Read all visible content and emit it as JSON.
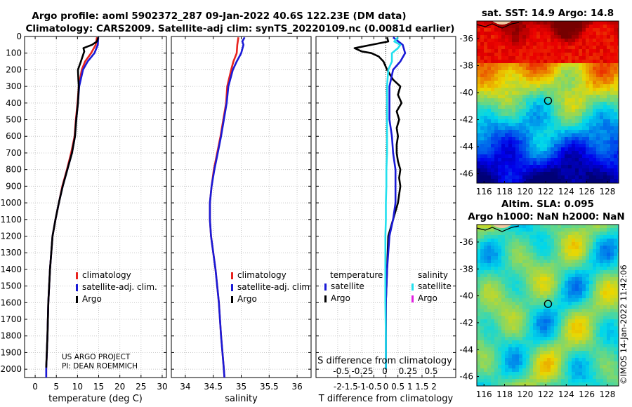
{
  "header": {
    "line1": "Argo profile: aoml 5902372_287 09-Jan-2022 40.6S 122.23E (DM data)",
    "line2": "Climatology: CARS2009. Satellite-adj clim: synTS_20220109.nc (0.0081d earlier)"
  },
  "credit": {
    "project": "US ARGO PROJECT",
    "pi": "PI: DEAN ROEMMICH",
    "side_text": "©IMOS 14-Jan-2022 11:42:06"
  },
  "colors": {
    "climatology": "#e8231f",
    "satellite": "#1a1ad6",
    "argo": "#000000",
    "sal_satellite": "#22e0ee",
    "sal_argo": "#e020e0"
  },
  "chart_data": [
    {
      "type": "line",
      "title": "",
      "xlabel": "temperature (deg C)",
      "ylabel": "",
      "xlim": [
        -2.5,
        31
      ],
      "ylim": [
        2050,
        0
      ],
      "xticks": [
        0,
        5,
        10,
        15,
        20,
        25,
        30
      ],
      "yticks": [
        0,
        100,
        200,
        300,
        400,
        500,
        600,
        700,
        800,
        900,
        1000,
        1100,
        1200,
        1300,
        1400,
        1500,
        1600,
        1700,
        1800,
        1900,
        2000
      ],
      "legend": [
        "climatology",
        "satellite-adj. clim.",
        "Argo"
      ],
      "series": [
        {
          "name": "climatology",
          "depth": [
            5,
            50,
            100,
            150,
            200,
            300,
            400,
            500,
            600,
            700,
            800,
            900,
            1000,
            1100,
            1200,
            1400,
            1600,
            1800,
            2000,
            2050
          ],
          "values": [
            14.6,
            14.3,
            13.2,
            11.8,
            11.0,
            10.3,
            10.0,
            9.6,
            9.3,
            8.5,
            7.5,
            6.4,
            5.6,
            4.8,
            4.1,
            3.5,
            3.1,
            2.9,
            2.6,
            2.6
          ]
        },
        {
          "name": "satellite-adj. clim.",
          "depth": [
            5,
            50,
            100,
            150,
            200,
            300,
            400,
            500,
            600,
            700,
            800,
            900,
            1000,
            1100,
            1200,
            1400,
            1600,
            1800,
            2000,
            2050
          ],
          "values": [
            14.9,
            14.8,
            14.0,
            12.4,
            11.3,
            10.4,
            10.1,
            9.7,
            9.4,
            8.7,
            7.6,
            6.5,
            5.6,
            4.8,
            4.1,
            3.5,
            3.1,
            2.9,
            2.6,
            2.6
          ]
        },
        {
          "name": "Argo",
          "depth": [
            5,
            30,
            50,
            70,
            90,
            120,
            150,
            200,
            260,
            300,
            400,
            500,
            600,
            700,
            800,
            900,
            1000,
            1100,
            1200,
            1400,
            1600,
            1800,
            1990
          ],
          "values": [
            14.9,
            14.6,
            13.4,
            11.4,
            11.6,
            11.2,
            10.8,
            10.1,
            10.2,
            10.3,
            10.1,
            9.7,
            9.4,
            8.7,
            7.6,
            6.5,
            5.6,
            4.8,
            4.1,
            3.5,
            3.1,
            2.9,
            2.6
          ]
        }
      ]
    },
    {
      "type": "line",
      "title": "",
      "xlabel": "salinity",
      "ylabel": "",
      "xlim": [
        33.75,
        36.25
      ],
      "ylim": [
        2050,
        0
      ],
      "xticks": [
        34,
        34.5,
        35,
        35.5,
        36
      ],
      "legend": [
        "climatology",
        "satellite-adj. clim.",
        "Argo"
      ],
      "series": [
        {
          "name": "climatology",
          "depth": [
            5,
            50,
            100,
            150,
            200,
            300,
            400,
            500,
            600,
            700,
            800,
            900,
            1000,
            1100,
            1200,
            1300,
            1400,
            1500,
            1600,
            1800,
            2000,
            2050
          ],
          "values": [
            34.95,
            34.93,
            34.92,
            34.86,
            34.82,
            34.75,
            34.73,
            34.68,
            34.63,
            34.57,
            34.51,
            34.47,
            34.44,
            34.44,
            34.46,
            34.5,
            34.54,
            34.57,
            34.6,
            34.64,
            34.69,
            34.7
          ]
        },
        {
          "name": "satellite-adj. clim.",
          "depth": [
            5,
            30,
            50,
            100,
            150,
            200,
            300,
            400,
            500,
            600,
            700,
            800,
            900,
            1000,
            1100,
            1200,
            1300,
            1400,
            1500,
            1600,
            1800,
            2000,
            2050
          ],
          "values": [
            35.06,
            35.02,
            35.04,
            35.0,
            34.92,
            34.85,
            34.77,
            34.74,
            34.69,
            34.64,
            34.58,
            34.52,
            34.47,
            34.44,
            34.44,
            34.46,
            34.5,
            34.54,
            34.57,
            34.6,
            34.64,
            34.69,
            34.7
          ]
        }
      ]
    },
    {
      "type": "line",
      "title": "",
      "xlabel": "T difference from climatology",
      "x2label": "S difference from climatology",
      "ylabel": "",
      "xlim": [
        -2.9,
        2.9
      ],
      "ylim": [
        2050,
        0
      ],
      "xticks": [
        -2,
        -1.5,
        -1,
        -0.5,
        0,
        0.5,
        1,
        1.5,
        2
      ],
      "x2ticks": [
        "-0.5",
        "-0.25",
        "0",
        "0.25",
        "0.5"
      ],
      "legend_headers": [
        "temperature",
        "salinity"
      ],
      "legend": [
        "satellite",
        "Argo",
        "satellite",
        "Argo"
      ],
      "series": [
        {
          "name": "T Argo",
          "depth": [
            5,
            30,
            50,
            70,
            90,
            100,
            120,
            150,
            200,
            260,
            300,
            350,
            400,
            450,
            500,
            550,
            600,
            650,
            700,
            750,
            800,
            850,
            900,
            950,
            1000,
            1100,
            1200,
            1400,
            1600,
            1800,
            2000
          ],
          "values": [
            0.05,
            0.1,
            -0.6,
            -1.3,
            -1.0,
            -0.6,
            -0.3,
            -0.1,
            0.05,
            0.3,
            0.6,
            0.5,
            0.65,
            0.45,
            0.55,
            0.45,
            0.5,
            0.45,
            0.45,
            0.5,
            0.6,
            0.55,
            0.6,
            0.55,
            0.5,
            0.3,
            0.1,
            0.05,
            0.0,
            0.0,
            0.0
          ]
        },
        {
          "name": "T satellite",
          "depth": [
            5,
            50,
            100,
            150,
            200,
            300,
            400,
            500,
            600,
            700,
            800,
            900,
            1000,
            1100,
            1200,
            1400,
            1600,
            1800,
            2000
          ],
          "values": [
            0.3,
            0.7,
            0.8,
            0.6,
            0.3,
            0.15,
            0.15,
            0.15,
            0.25,
            0.3,
            0.4,
            0.4,
            0.4,
            0.3,
            0.15,
            0.05,
            0.0,
            0.0,
            0.0
          ]
        },
        {
          "name": "S satellite",
          "depth": [
            5,
            30,
            50,
            70,
            100,
            150,
            200,
            300,
            400,
            500,
            600,
            700,
            800,
            900,
            1000,
            1100,
            1200,
            1400,
            1600,
            1800,
            2000
          ],
          "values": [
            0.5,
            0.35,
            0.6,
            0.5,
            0.25,
            0.25,
            0.1,
            0.05,
            0.05,
            0.05,
            0.05,
            0.05,
            0.02,
            0.02,
            0.0,
            0.0,
            -0.02,
            -0.02,
            -0.02,
            0.0,
            0.0
          ]
        }
      ]
    },
    {
      "type": "heatmap",
      "title": "sat. SST: 14.9 Argo: 14.8",
      "xlim": [
        115.3,
        129.1
      ],
      "ylim": [
        -46.7,
        -34.7
      ],
      "xticks": [
        116,
        118,
        120,
        122,
        124,
        126,
        128
      ],
      "yticks": [
        -36,
        -38,
        -40,
        -42,
        -44,
        -46
      ],
      "marker": {
        "lon": 122.23,
        "lat": -40.6
      }
    },
    {
      "type": "heatmap",
      "title": "Altim. SLA: 0.095",
      "subtitle": "Argo h1000: NaN h2000: NaN",
      "xlim": [
        115.3,
        129.1
      ],
      "ylim": [
        -46.7,
        -34.7
      ],
      "xticks": [
        116,
        118,
        120,
        122,
        124,
        126,
        128
      ],
      "yticks": [
        -36,
        -38,
        -40,
        -42,
        -44,
        -46
      ],
      "marker": {
        "lon": 122.23,
        "lat": -40.6
      }
    }
  ]
}
